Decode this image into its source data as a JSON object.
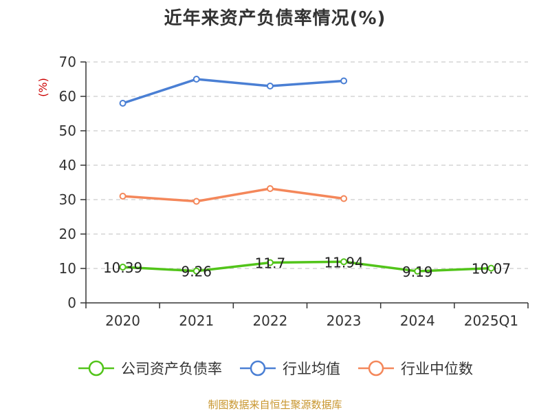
{
  "chart_data": {
    "type": "line",
    "title": "近年来资产负债率情况(%)",
    "ylabel": "(%)",
    "categories": [
      "2020",
      "2021",
      "2022",
      "2023",
      "2024",
      "2025Q1"
    ],
    "ylim": [
      0,
      70
    ],
    "yticks": [
      "0",
      "10",
      "20",
      "30",
      "40",
      "50",
      "60",
      "70"
    ],
    "grid": true,
    "legend_position": "bottom",
    "series": [
      {
        "name": "公司资产负债率",
        "color": "#52c41a",
        "values": [
          10.39,
          9.26,
          11.7,
          11.94,
          9.19,
          10.07
        ],
        "labels": [
          "10.39",
          "9.26",
          "11.7",
          "11.94",
          "9.19",
          "10.07"
        ]
      },
      {
        "name": "行业均值",
        "color": "#4a7fd4",
        "values": [
          58,
          65,
          63,
          64.5,
          null,
          null
        ]
      },
      {
        "name": "行业中位数",
        "color": "#f4875a",
        "values": [
          31,
          29.5,
          33.2,
          30.3,
          null,
          null
        ]
      }
    ],
    "source": "制图数据来自恒生聚源数据库"
  }
}
